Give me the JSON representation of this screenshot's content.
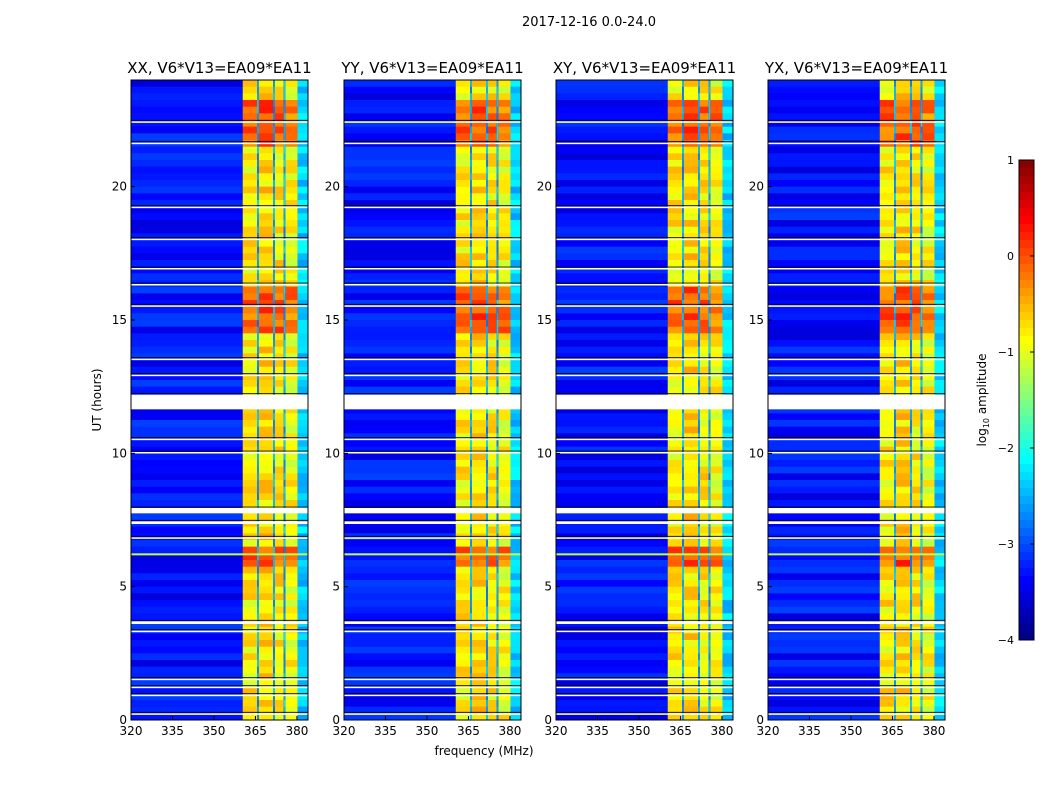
{
  "chart_data": {
    "type": "heatmap",
    "suptitle": "2017-12-16 0.0-24.0",
    "xlabel": "frequency (MHz)",
    "ylabel": "UT (hours)",
    "xlim": [
      320,
      384
    ],
    "ylim": [
      0,
      24
    ],
    "xticks": [
      "320",
      "335",
      "350",
      "365",
      "380"
    ],
    "xtick_values": [
      320,
      335,
      350,
      365,
      380
    ],
    "yticks": [
      "0",
      "5",
      "10",
      "15",
      "20"
    ],
    "ytick_values": [
      0,
      5,
      10,
      15,
      20
    ],
    "panels": [
      {
        "title": "XX, V6*V13=EA09*EA11"
      },
      {
        "title": "YY, V6*V13=EA09*EA11"
      },
      {
        "title": "XY, V6*V13=EA09*EA11"
      },
      {
        "title": "YX, V6*V13=EA09*EA11"
      }
    ],
    "background_log_amplitude": -3.3,
    "rfi_band_mhz": [
      360.4,
      380.2
    ],
    "rfi_subbands": [
      {
        "range": [
          360.4,
          365.6
        ],
        "level": -0.8
      },
      {
        "range": [
          366.2,
          371.4
        ],
        "level": -0.7
      },
      {
        "range": [
          372.0,
          375.2
        ],
        "level": -0.8
      },
      {
        "range": [
          375.8,
          380.2
        ],
        "level": -0.9
      }
    ],
    "strong_rfi_hours": [
      [
        5.7,
        6.6
      ],
      [
        21.5,
        23.2
      ],
      [
        14.5,
        16.2
      ]
    ],
    "flagged_hours": [
      [
        22.4,
        22.45
      ],
      [
        21.6,
        21.65
      ],
      [
        19.2,
        19.25
      ],
      [
        18.0,
        18.05
      ],
      [
        16.9,
        16.95
      ],
      [
        16.3,
        16.35
      ],
      [
        15.5,
        15.55
      ],
      [
        13.5,
        13.55
      ],
      [
        12.9,
        12.95
      ],
      [
        11.65,
        12.2
      ],
      [
        10.5,
        10.55
      ],
      [
        10.0,
        10.05
      ],
      [
        7.75,
        7.95
      ],
      [
        7.35,
        7.45
      ],
      [
        6.8,
        6.85
      ],
      [
        3.6,
        3.7
      ],
      [
        3.3,
        3.35
      ],
      [
        1.5,
        1.55
      ],
      [
        1.2,
        1.25
      ],
      [
        0.9,
        0.95
      ],
      [
        0.2,
        0.25
      ]
    ],
    "colorbar": {
      "label": "log10 amplitude",
      "label_main": "log",
      "label_sub": "10",
      "label_rest": " amplitude",
      "range": [
        -4,
        1
      ],
      "ticks": [
        "−4",
        "−3",
        "−2",
        "−1",
        "0",
        "1"
      ],
      "tick_values": [
        -4,
        -3,
        -2,
        -1,
        0,
        1
      ],
      "colormap": "jet"
    }
  }
}
